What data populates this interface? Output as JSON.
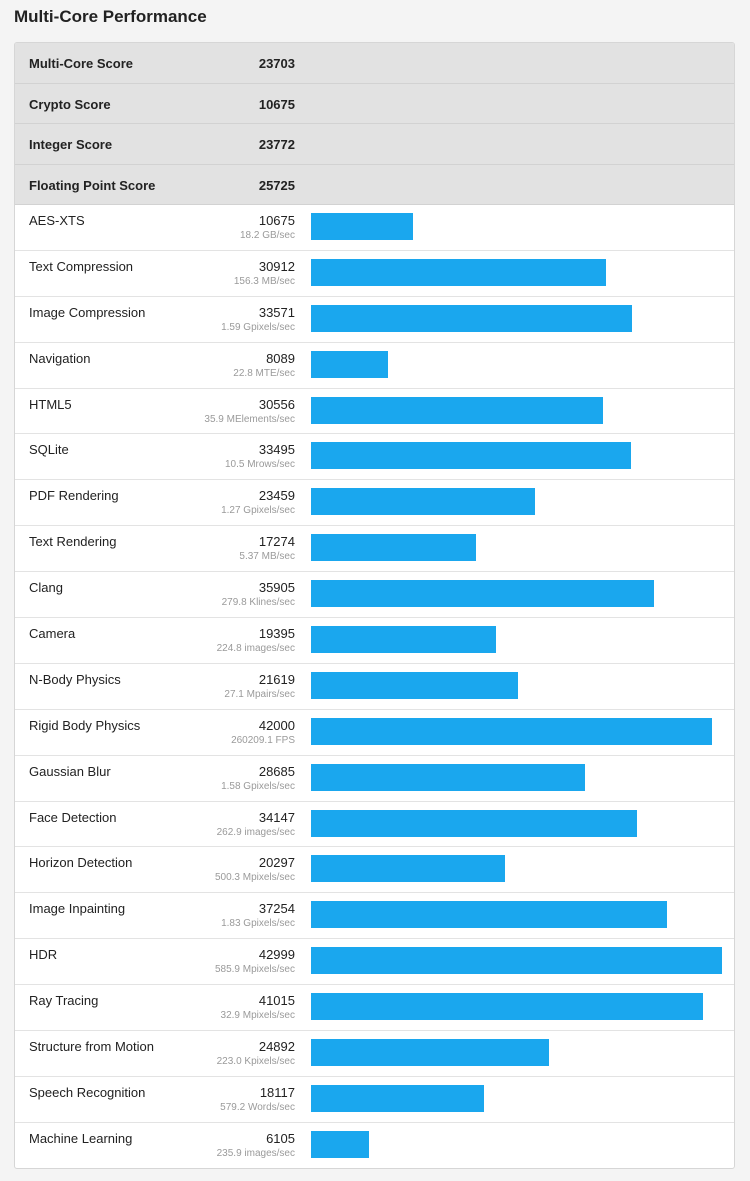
{
  "title": "Multi-Core Performance",
  "colors": {
    "bar": "#1aa7ee"
  },
  "summary": [
    {
      "label": "Multi-Core Score",
      "value": "23703"
    },
    {
      "label": "Crypto Score",
      "value": "10675"
    },
    {
      "label": "Integer Score",
      "value": "23772"
    },
    {
      "label": "Floating Point Score",
      "value": "25725"
    }
  ],
  "benchmarks": [
    {
      "name": "AES-XTS",
      "score": "10675",
      "rate": "18.2 GB/sec"
    },
    {
      "name": "Text Compression",
      "score": "30912",
      "rate": "156.3 MB/sec"
    },
    {
      "name": "Image Compression",
      "score": "33571",
      "rate": "1.59 Gpixels/sec"
    },
    {
      "name": "Navigation",
      "score": "8089",
      "rate": "22.8 MTE/sec"
    },
    {
      "name": "HTML5",
      "score": "30556",
      "rate": "35.9 MElements/sec"
    },
    {
      "name": "SQLite",
      "score": "33495",
      "rate": "10.5 Mrows/sec"
    },
    {
      "name": "PDF Rendering",
      "score": "23459",
      "rate": "1.27 Gpixels/sec"
    },
    {
      "name": "Text Rendering",
      "score": "17274",
      "rate": "5.37 MB/sec"
    },
    {
      "name": "Clang",
      "score": "35905",
      "rate": "279.8 Klines/sec"
    },
    {
      "name": "Camera",
      "score": "19395",
      "rate": "224.8 images/sec"
    },
    {
      "name": "N-Body Physics",
      "score": "21619",
      "rate": "27.1 Mpairs/sec"
    },
    {
      "name": "Rigid Body Physics",
      "score": "42000",
      "rate": "260209.1 FPS"
    },
    {
      "name": "Gaussian Blur",
      "score": "28685",
      "rate": "1.58 Gpixels/sec"
    },
    {
      "name": "Face Detection",
      "score": "34147",
      "rate": "262.9 images/sec"
    },
    {
      "name": "Horizon Detection",
      "score": "20297",
      "rate": "500.3 Mpixels/sec"
    },
    {
      "name": "Image Inpainting",
      "score": "37254",
      "rate": "1.83 Gpixels/sec"
    },
    {
      "name": "HDR",
      "score": "42999",
      "rate": "585.9 Mpixels/sec"
    },
    {
      "name": "Ray Tracing",
      "score": "41015",
      "rate": "32.9 Mpixels/sec"
    },
    {
      "name": "Structure from Motion",
      "score": "24892",
      "rate": "223.0 Kpixels/sec"
    },
    {
      "name": "Speech Recognition",
      "score": "18117",
      "rate": "579.2 Words/sec"
    },
    {
      "name": "Machine Learning",
      "score": "6105",
      "rate": "235.9 images/sec"
    }
  ]
}
